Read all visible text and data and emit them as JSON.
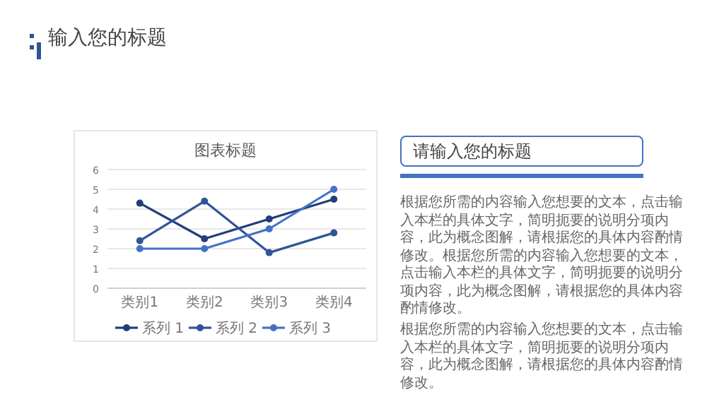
{
  "chart_data": [
    {
      "type": "other",
      "title": "输入您的标题"
    },
    {
      "type": "line",
      "title": "图表标题",
      "categories": [
        "类别1",
        "类别2",
        "类别3",
        "类别4"
      ],
      "series": [
        {
          "name": "系列 1",
          "color": "#1f3f7a",
          "values": [
            4.3,
            2.5,
            3.5,
            4.5
          ]
        },
        {
          "name": "系列 2",
          "color": "#2f5597",
          "values": [
            2.4,
            4.4,
            1.8,
            2.8
          ]
        },
        {
          "name": "系列 3",
          "color": "#4472c4",
          "values": [
            2,
            2,
            3,
            5
          ]
        }
      ],
      "ylim": [
        0,
        6
      ],
      "yticks": [
        0,
        1,
        2,
        3,
        4,
        5,
        6
      ],
      "grid": "y",
      "legend": "bottom",
      "marker": "circle"
    },
    {
      "type": "other",
      "title": "请输入您的标题",
      "annotations": [
        "根据您所需的内容输入您想要的文本，点击输入本栏的具体文字，简明扼要的说明分项内容，此为概念图解，请根据您的具体内容酌情修改。根据您所需的内容输入您想要的文本，点击输入本栏的具体文字，简明扼要的说明分项内容，此为概念图解，请根据您的具体内容酌情修改。",
        "根据您所需的内容输入您想要的文本，点击输入本栏的具体文字，简明扼要的说明分项内容，此为概念图解，请根据您的具体内容酌情修改。"
      ]
    }
  ]
}
